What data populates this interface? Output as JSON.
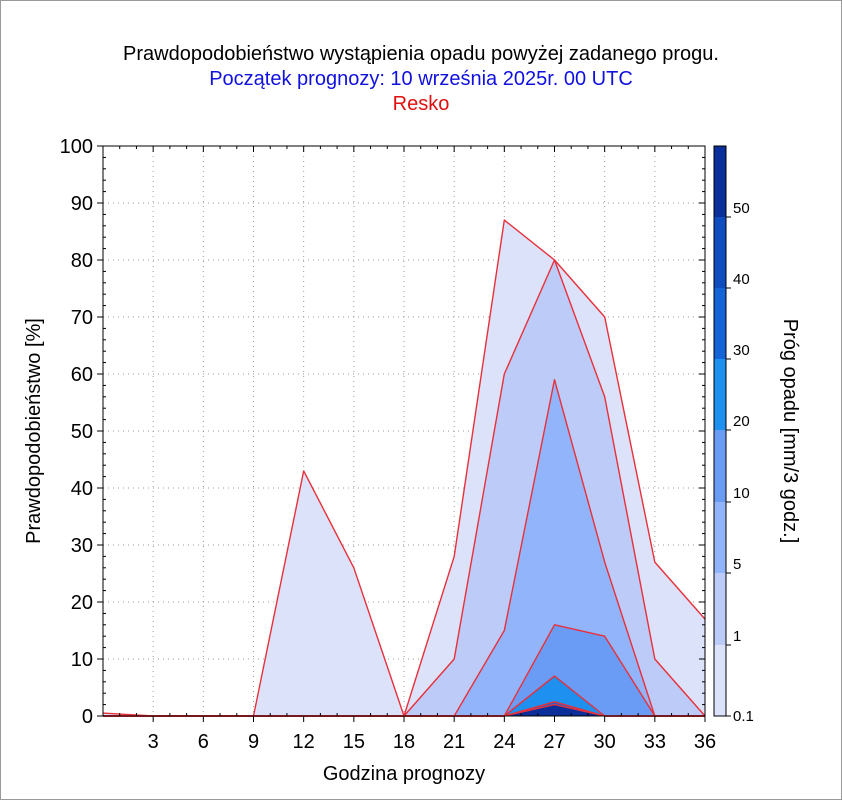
{
  "titles": {
    "main": "Prawdopodobieństwo wystąpienia opadu powyżej zadanego progu.",
    "forecast_start": "Początek prognozy: 10 września 2025r. 00 UTC",
    "station": "Resko"
  },
  "colors": {
    "title_main": "#000000",
    "title_start": "#1010e0",
    "title_station": "#e01010",
    "contour_line": "#e8303a"
  },
  "chart_data": {
    "type": "area",
    "title": "Prawdopodobieństwo wystąpienia opadu powyżej zadanego progu.",
    "xlabel": "Godzina prognozy",
    "ylabel": "Prawdopodobieństwo [%]",
    "xlim": [
      0,
      36
    ],
    "ylim": [
      0,
      100
    ],
    "x_ticks": [
      3,
      6,
      9,
      12,
      15,
      18,
      21,
      24,
      27,
      30,
      33,
      36
    ],
    "y_ticks": [
      0,
      10,
      20,
      30,
      40,
      50,
      60,
      70,
      80,
      90,
      100
    ],
    "x": [
      0,
      3,
      6,
      9,
      12,
      15,
      18,
      21,
      24,
      27,
      30,
      33,
      36
    ],
    "series": [
      {
        "threshold": "0.1",
        "color": "#dde2fb",
        "values": [
          0.5,
          0,
          0,
          0,
          43,
          26,
          0,
          28,
          87,
          80,
          70,
          27,
          17
        ]
      },
      {
        "threshold": "1",
        "color": "#bdcbf8",
        "values": [
          0,
          0,
          0,
          0,
          0,
          0,
          0,
          10,
          60,
          80,
          56,
          10,
          0
        ]
      },
      {
        "threshold": "5",
        "color": "#92b4fa",
        "values": [
          0,
          0,
          0,
          0,
          0,
          0,
          0,
          0,
          15,
          59,
          27,
          0,
          0
        ]
      },
      {
        "threshold": "10",
        "color": "#6a9cf6",
        "values": [
          0,
          0,
          0,
          0,
          0,
          0,
          0,
          0,
          0,
          16,
          14,
          0,
          0
        ]
      },
      {
        "threshold": "20",
        "color": "#1e90f0",
        "values": [
          0,
          0,
          0,
          0,
          0,
          0,
          0,
          0,
          0,
          7,
          0,
          0,
          0
        ]
      },
      {
        "threshold": "30",
        "color": "#1464d8",
        "values": [
          0,
          0,
          0,
          0,
          0,
          0,
          0,
          0,
          0,
          2.5,
          0,
          0,
          0
        ]
      },
      {
        "threshold": "50",
        "color": "#0a2f9a",
        "values": [
          0,
          0,
          0,
          0,
          0,
          0,
          0,
          0,
          0,
          2,
          0,
          0,
          0
        ]
      }
    ],
    "colorbar": {
      "label": "Próg opadu [mm/3 godz.]",
      "ticks": [
        "0.1",
        "1",
        "5",
        "10",
        "20",
        "30",
        "40",
        "50"
      ],
      "colors": [
        "#dde2fb",
        "#bdcbf8",
        "#92b4fa",
        "#6a9cf6",
        "#1e90f0",
        "#1464d8",
        "#0e4cc0",
        "#0a2f9a"
      ]
    },
    "grid": true
  }
}
